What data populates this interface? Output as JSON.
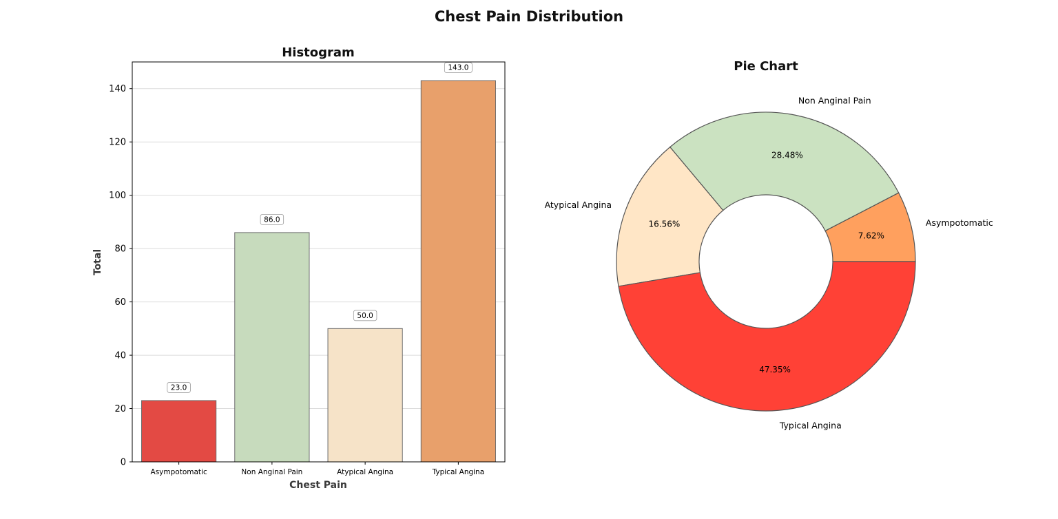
{
  "figure": {
    "title": "Chest Pain Distribution"
  },
  "chart_data": [
    {
      "type": "bar",
      "title": "Histogram",
      "xlabel": "Chest Pain",
      "ylabel": "Total",
      "ylim": [
        0,
        150
      ],
      "yticks": [
        0,
        20,
        40,
        60,
        80,
        100,
        120,
        140
      ],
      "grid": "y",
      "categories": [
        "Asympotomatic",
        "Non Anginal Pain",
        "Atypical Angina",
        "Typical Angina"
      ],
      "values": [
        23,
        86,
        50,
        143
      ],
      "value_labels": [
        "23.0",
        "86.0",
        "50.0",
        "143.0"
      ],
      "colors": [
        "#e34a44",
        "#c7dbbd",
        "#f6e3c8",
        "#e8a06b"
      ]
    },
    {
      "type": "pie",
      "title": "Pie Chart",
      "donut": true,
      "labels": [
        "Asympotomatic",
        "Non Anginal Pain",
        "Atypical Angina",
        "Typical Angina"
      ],
      "values": [
        23,
        86,
        50,
        143
      ],
      "percent_labels": [
        "7.62%",
        "28.48%",
        "16.56%",
        "47.35%"
      ],
      "colors": [
        "#ffa05e",
        "#cbe2c1",
        "#ffe6c6",
        "#ff4136"
      ]
    }
  ]
}
